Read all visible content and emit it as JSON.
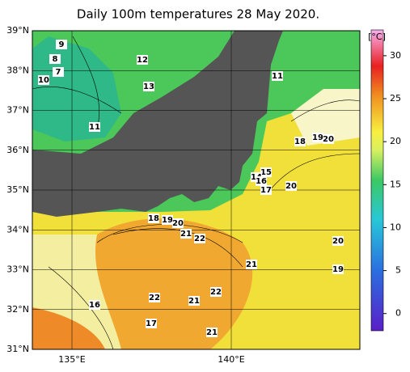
{
  "title": "Daily 100m temperatures 28 May 2020.",
  "lat_labels": [
    "39°N",
    "38°N",
    "37°N",
    "36°N",
    "35°N",
    "34°N",
    "33°N",
    "32°N",
    "31°N"
  ],
  "lon_labels": [
    "135°E",
    "140°E"
  ],
  "contour_labels": [
    "9",
    "8",
    "7",
    "10",
    "12",
    "13",
    "11",
    "11",
    "18",
    "19",
    "20",
    "15",
    "14",
    "16",
    "17",
    "20",
    "18",
    "19",
    "20",
    "21",
    "22",
    "20",
    "21",
    "19",
    "16",
    "22",
    "21",
    "22",
    "17",
    "21"
  ],
  "colorbar": {
    "unit": "[°C]",
    "clim": [
      -2,
      33
    ],
    "ticks": [
      0,
      5,
      10,
      15,
      20,
      25,
      30
    ]
  }
}
